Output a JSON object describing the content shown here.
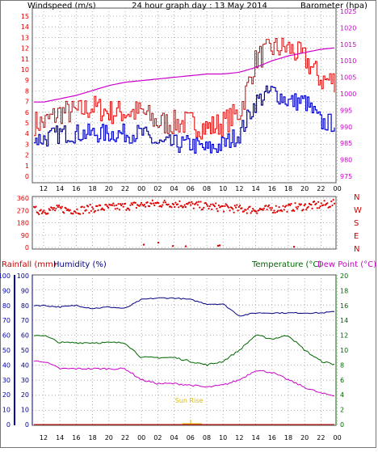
{
  "header": {
    "windspeed_label": "Windspeed (m/s)",
    "title": "24 hour graph day : 13 May 2014",
    "barometer_label": "Barometer (hpa)"
  },
  "colors": {
    "wind_gust": "#e00000",
    "wind_avg": "#0000cc",
    "barometer": "#cc00cc",
    "direction": "#e00000",
    "rain": "#cc0000",
    "humidity": "#000080",
    "temperature": "#006600",
    "dewpoint": "#cc00cc",
    "sunrise": "#ddbb00",
    "grid": "#9a9a9a",
    "rain_axis": "#0000aa",
    "hum_axis": "#000080",
    "temp_axis": "#006600"
  },
  "time_ticks": [
    "12",
    "14",
    "16",
    "18",
    "20",
    "22",
    "00",
    "02",
    "04",
    "06",
    "08",
    "10",
    "12",
    "14",
    "16",
    "18",
    "20",
    "22",
    "00"
  ],
  "sunrise_label": "Sun Rise",
  "compass_labels": [
    "N",
    "W",
    "S",
    "E",
    "N"
  ],
  "lower_header": {
    "rainfall_label": "Rainfall (mm)",
    "humidity_label": "Humidity (%)",
    "temperature_label": "Temperature (°C)",
    "dewpoint_label": "Dew Point (°C)"
  },
  "chart_data": [
    {
      "type": "line",
      "title": "24 hour graph day : 13 May 2014",
      "x": [
        "12",
        "14",
        "16",
        "18",
        "20",
        "22",
        "00",
        "02",
        "04",
        "06",
        "08",
        "10",
        "12",
        "14",
        "16",
        "18",
        "20",
        "22",
        "00"
      ],
      "y_ticks": [
        "0",
        "1",
        "2",
        "3",
        "4",
        "5",
        "6",
        "7",
        "8",
        "9",
        "10",
        "11",
        "12",
        "13",
        "14",
        "15"
      ],
      "y2_ticks": [
        "975",
        "980",
        "985",
        "990",
        "995",
        "1000",
        "1005",
        "1010",
        "1015",
        "1020",
        "1025"
      ],
      "ylim": [
        0,
        15
      ],
      "y2lim": [
        975,
        1025
      ],
      "series": [
        {
          "name": "Windspeed (m/s)",
          "gust_values": [
            5,
            6,
            6,
            6.5,
            6,
            6,
            6,
            5,
            5,
            5,
            4.5,
            5,
            6,
            11,
            12,
            12,
            11,
            9,
            9
          ],
          "avg_values": [
            3.5,
            4,
            4,
            4,
            4,
            4,
            4,
            3,
            3,
            3,
            2.5,
            3,
            4,
            7,
            8,
            7,
            7,
            5,
            5
          ]
        },
        {
          "name": "Barometer (hpa)",
          "values": [
            997.5,
            998.5,
            999.5,
            1001,
            1002.5,
            1003.5,
            1004,
            1004.5,
            1005,
            1005.5,
            1006,
            1006,
            1006.5,
            1008,
            1010,
            1011.5,
            1012.5,
            1013.5,
            1014
          ]
        }
      ]
    },
    {
      "type": "scatter",
      "y_ticks": [
        "360",
        "270",
        "180",
        "90",
        "0"
      ],
      "ylim": [
        0,
        360
      ],
      "series": [
        {
          "name": "Wind direction",
          "values": [
            270,
            280,
            270,
            285,
            290,
            300,
            310,
            320,
            320,
            310,
            300,
            290,
            280,
            275,
            280,
            290,
            300,
            310,
            320
          ]
        }
      ]
    },
    {
      "type": "line",
      "x": [
        "12",
        "14",
        "16",
        "18",
        "20",
        "22",
        "00",
        "02",
        "04",
        "06",
        "08",
        "10",
        "12",
        "14",
        "16",
        "18",
        "20",
        "22",
        "00"
      ],
      "rain_ticks": [
        "0",
        "10",
        "20",
        "30",
        "40",
        "50",
        "60",
        "70",
        "80",
        "90",
        "100"
      ],
      "humidity_ticks": [
        "0",
        "10",
        "20",
        "30",
        "40",
        "50",
        "60",
        "70",
        "80",
        "90",
        "100"
      ],
      "temperature_ticks": [
        "0",
        "2",
        "4",
        "6",
        "8",
        "10",
        "12",
        "14",
        "16",
        "18",
        "20"
      ],
      "series": [
        {
          "name": "Humidity (%)",
          "values": [
            80,
            79,
            80,
            78,
            79,
            78,
            84,
            85,
            85,
            84,
            81,
            81,
            73,
            75,
            75,
            75,
            75,
            75,
            76
          ]
        },
        {
          "name": "Temperature (°C)",
          "values": [
            12,
            11,
            11,
            11,
            11,
            11,
            9,
            9,
            9,
            8.5,
            8,
            8.5,
            10,
            12,
            11.5,
            12,
            10,
            8.5,
            8
          ]
        },
        {
          "name": "Dew Point (°C)",
          "values": [
            8.5,
            7.5,
            7.5,
            7.5,
            7.5,
            7.5,
            6,
            5.5,
            5.5,
            5.3,
            5,
            5.3,
            6,
            7.3,
            7,
            6,
            5,
            4.2,
            3.8
          ]
        },
        {
          "name": "Rainfall (mm)",
          "values": [
            0,
            0,
            0,
            0,
            0,
            0,
            0,
            0,
            0,
            0,
            0,
            0,
            0,
            0,
            0,
            0,
            0,
            0,
            0
          ]
        }
      ]
    }
  ]
}
